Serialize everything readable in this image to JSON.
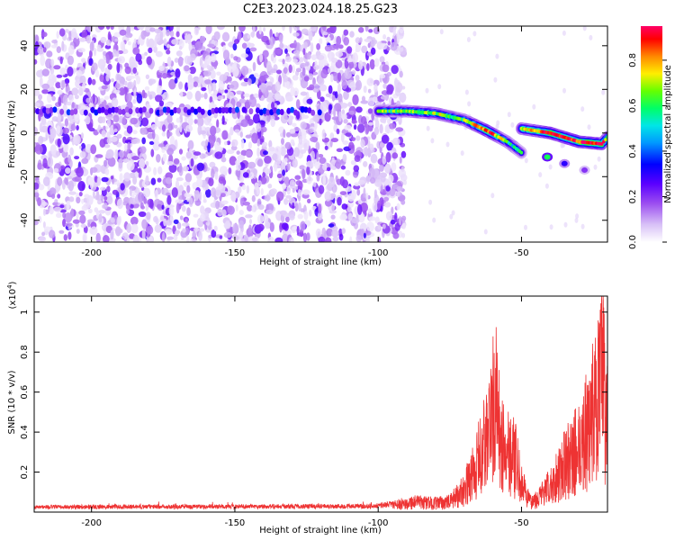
{
  "title": "C2E3.2023.024.18.25.G23",
  "chart_data": [
    {
      "type": "heatmap",
      "xlabel": "Height of straight line (km)",
      "ylabel": "Frequency (Hz)",
      "xlim": [
        -220,
        -20
      ],
      "ylim": [
        -50,
        49
      ],
      "x_ticks": [
        -200,
        -150,
        -100,
        -50
      ],
      "y_ticks": [
        -40,
        -20,
        0,
        20,
        40
      ],
      "grid": false,
      "colorbar": {
        "label": "Normalized spectral amplitude",
        "ticks": [
          0.0,
          0.2,
          0.4,
          0.6,
          0.8
        ],
        "range": [
          0,
          0.95
        ],
        "colormap": [
          "#ffffff",
          "#c9a8f5",
          "#8a2be2",
          "#3a00ff",
          "#0000ff",
          "#00ccff",
          "#00ff66",
          "#66ff00",
          "#ffee00",
          "#ff8800",
          "#ff0000",
          "#ff0066"
        ]
      },
      "features": {
        "noise_region_x": [
          -220,
          -95
        ],
        "noise_amplitude": 0.15,
        "horizontal_band": {
          "x": [
            -220,
            -120
          ],
          "y": 10,
          "amplitude": 0.3
        },
        "main_trace": [
          {
            "x": -100,
            "y": 10,
            "amplitude": 0.6
          },
          {
            "x": -90,
            "y": 10,
            "amplitude": 0.65
          },
          {
            "x": -80,
            "y": 9,
            "amplitude": 0.7
          },
          {
            "x": -70,
            "y": 6,
            "amplitude": 0.6
          },
          {
            "x": -62,
            "y": 1,
            "amplitude": 0.9
          },
          {
            "x": -55,
            "y": -4,
            "amplitude": 0.6
          },
          {
            "x": -50,
            "y": -9,
            "amplitude": 0.5
          }
        ],
        "second_trace": [
          {
            "x": -50,
            "y": 2,
            "amplitude": 0.7
          },
          {
            "x": -40,
            "y": 0,
            "amplitude": 0.9
          },
          {
            "x": -30,
            "y": -4,
            "amplitude": 0.9
          },
          {
            "x": -22,
            "y": -5,
            "amplitude": 0.95
          },
          {
            "x": -20,
            "y": -2,
            "amplitude": 0.7
          }
        ],
        "blobs": [
          {
            "x": -41,
            "y": -11,
            "amplitude": 0.6
          },
          {
            "x": -35,
            "y": -14,
            "amplitude": 0.3
          },
          {
            "x": -28,
            "y": -17,
            "amplitude": 0.2
          }
        ]
      }
    },
    {
      "type": "line",
      "xlabel": "Height of straight line (km)",
      "ylabel": "SNR (10 * v/v)",
      "yscale_note": "(x10^4)",
      "xlim": [
        -220,
        -20
      ],
      "ylim": [
        0,
        1.08
      ],
      "x_ticks": [
        -200,
        -150,
        -100,
        -50
      ],
      "y_ticks": [
        0.2,
        0.4,
        0.6,
        0.8,
        1.0
      ],
      "grid": false,
      "color": "#ee3333",
      "envelope": {
        "x": [
          -220,
          -100,
          -95,
          -88,
          -80,
          -75,
          -70,
          -66,
          -62,
          -59,
          -57,
          -55,
          -52,
          -50,
          -47,
          -44,
          -40,
          -36,
          -32,
          -28,
          -25,
          -23,
          -22,
          -21,
          -20
        ],
        "y": [
          0.03,
          0.035,
          0.05,
          0.08,
          0.07,
          0.08,
          0.18,
          0.35,
          0.6,
          0.9,
          0.5,
          0.55,
          0.4,
          0.22,
          0.08,
          0.12,
          0.2,
          0.35,
          0.45,
          0.6,
          0.8,
          0.9,
          1.05,
          0.95,
          0.7
        ]
      }
    }
  ]
}
